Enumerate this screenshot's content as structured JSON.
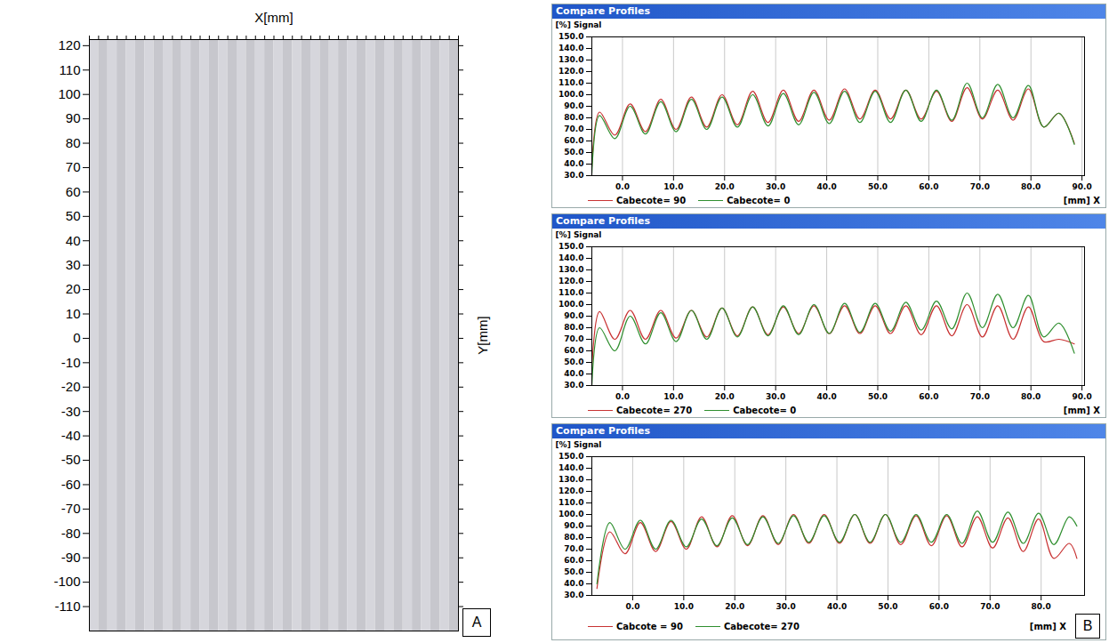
{
  "chart_data": [
    {
      "type": "heatmap",
      "panel_label": "A",
      "x_label": "X[mm]",
      "y_label": "Y[mm]",
      "tick_labels": "y",
      "cells": [
        84,
        78,
        84,
        78,
        84,
        78,
        84,
        78,
        84,
        78,
        84,
        78,
        84,
        78,
        84,
        78,
        84,
        78,
        84,
        78,
        84,
        78,
        84,
        78,
        84,
        78,
        84,
        78,
        84,
        78,
        84,
        78,
        84,
        78,
        84,
        78,
        84,
        78,
        84,
        78
      ],
      "ylim": [
        -120,
        122.5
      ],
      "yticks": [
        -110,
        -100,
        -90,
        -80,
        -70,
        -60,
        -50,
        -40,
        -30,
        -20,
        -10,
        0,
        10,
        20,
        30,
        40,
        50,
        60,
        70,
        80,
        90,
        100,
        110,
        120
      ]
    },
    {
      "type": "line",
      "title": "Compare Profiles",
      "y_label": "[%] Signal",
      "x_label": "[mm] X",
      "grid": true,
      "legend": "bottom",
      "xlim": [
        -6,
        90.5
      ],
      "xticks": [
        {
          "value": 0,
          "label": "0.0"
        },
        {
          "value": 10,
          "label": "10.0"
        },
        {
          "value": 20,
          "label": "20.0"
        },
        {
          "value": 30,
          "label": "30.0"
        },
        {
          "value": 40,
          "label": "40.0"
        },
        {
          "value": 50,
          "label": "50.0"
        },
        {
          "value": 60,
          "label": "60.0"
        },
        {
          "value": 70,
          "label": "70.0"
        },
        {
          "value": 80,
          "label": "80.0"
        },
        {
          "value": 90,
          "label": "90.0"
        }
      ],
      "ylim": [
        30,
        150
      ],
      "yticks": [
        {
          "value": 30,
          "label": "30.0"
        },
        {
          "value": 40,
          "label": "40.0"
        },
        {
          "value": 50,
          "label": "50.0"
        },
        {
          "value": 60,
          "label": "60.0"
        },
        {
          "value": 70,
          "label": "70.0"
        },
        {
          "value": 80,
          "label": "80.0"
        },
        {
          "value": 90,
          "label": "90.0"
        },
        {
          "value": 100,
          "label": "100.0"
        },
        {
          "value": 110,
          "label": "110.0"
        },
        {
          "value": 120,
          "label": "120.0"
        },
        {
          "value": 130,
          "label": "130.0"
        },
        {
          "value": 140,
          "label": "140.0"
        },
        {
          "value": 150,
          "label": "150.0"
        }
      ],
      "x": [
        -6,
        -4.5,
        -1.5,
        1.5,
        4.5,
        7.5,
        10.5,
        13.5,
        16.5,
        19.5,
        22.5,
        25.5,
        28.5,
        31.5,
        34.5,
        37.5,
        40.5,
        43.5,
        46.5,
        49.5,
        52.5,
        55.5,
        58.5,
        61.5,
        64.5,
        67.5,
        70.5,
        73.5,
        76.5,
        79.5,
        82.5,
        85.5,
        88.5
      ],
      "series": [
        {
          "name": "Cabecote= 90",
          "color": "#c83232",
          "values": [
            38,
            85,
            65,
            92,
            68,
            96,
            70,
            98,
            72,
            100,
            74,
            103,
            76,
            104,
            77,
            104,
            78,
            105,
            79,
            104,
            79,
            104,
            79,
            103,
            77,
            106,
            79,
            104,
            78,
            105,
            72,
            84,
            58
          ]
        },
        {
          "name": "Cabecote= 0",
          "color": "#2f8f2f",
          "values": [
            32,
            82,
            62,
            90,
            66,
            94,
            68,
            96,
            70,
            98,
            72,
            100,
            73,
            101,
            74,
            102,
            75,
            103,
            76,
            103,
            76,
            104,
            77,
            104,
            78,
            110,
            80,
            109,
            80,
            108,
            72,
            84,
            57
          ]
        }
      ]
    },
    {
      "type": "line",
      "title": "Compare Profiles",
      "y_label": "[%] Signal",
      "x_label": "[mm] X",
      "grid": true,
      "legend": "bottom",
      "xlim": [
        -6,
        90.5
      ],
      "xticks": [
        {
          "value": 0,
          "label": "0.0"
        },
        {
          "value": 10,
          "label": "10.0"
        },
        {
          "value": 20,
          "label": "20.0"
        },
        {
          "value": 30,
          "label": "30.0"
        },
        {
          "value": 40,
          "label": "40.0"
        },
        {
          "value": 50,
          "label": "50.0"
        },
        {
          "value": 60,
          "label": "60.0"
        },
        {
          "value": 70,
          "label": "70.0"
        },
        {
          "value": 80,
          "label": "80.0"
        },
        {
          "value": 90,
          "label": "90.0"
        }
      ],
      "ylim": [
        30,
        150
      ],
      "yticks": [
        {
          "value": 30,
          "label": "30.0"
        },
        {
          "value": 40,
          "label": "40.0"
        },
        {
          "value": 50,
          "label": "50.0"
        },
        {
          "value": 60,
          "label": "60.0"
        },
        {
          "value": 70,
          "label": "70.0"
        },
        {
          "value": 80,
          "label": "80.0"
        },
        {
          "value": 90,
          "label": "90.0"
        },
        {
          "value": 100,
          "label": "100.0"
        },
        {
          "value": 110,
          "label": "110.0"
        },
        {
          "value": 120,
          "label": "120.0"
        },
        {
          "value": 130,
          "label": "130.0"
        },
        {
          "value": 140,
          "label": "140.0"
        },
        {
          "value": 150,
          "label": "150.0"
        }
      ],
      "x": [
        -6,
        -4.5,
        -1.5,
        1.5,
        4.5,
        7.5,
        10.5,
        13.5,
        16.5,
        19.5,
        22.5,
        25.5,
        28.5,
        31.5,
        34.5,
        37.5,
        40.5,
        43.5,
        46.5,
        49.5,
        52.5,
        55.5,
        58.5,
        61.5,
        64.5,
        67.5,
        70.5,
        73.5,
        76.5,
        79.5,
        82.5,
        85.5,
        88.5
      ],
      "series": [
        {
          "name": "Cabecote= 270",
          "color": "#c83232",
          "values": [
            45,
            94,
            70,
            95,
            70,
            95,
            71,
            95,
            72,
            97,
            73,
            98,
            74,
            98,
            75,
            99,
            75,
            99,
            75,
            99,
            75,
            99,
            74,
            99,
            73,
            100,
            72,
            99,
            70,
            98,
            68,
            70,
            66
          ]
        },
        {
          "name": "Cabecote= 0",
          "color": "#2f8f2f",
          "values": [
            30,
            80,
            60,
            90,
            66,
            93,
            68,
            95,
            70,
            97,
            72,
            98,
            73,
            99,
            74,
            100,
            75,
            101,
            76,
            101,
            77,
            102,
            78,
            103,
            79,
            110,
            80,
            109,
            80,
            108,
            72,
            84,
            58
          ]
        }
      ]
    },
    {
      "type": "line",
      "title": "Compare Profiles",
      "y_label": "[%] Signal",
      "x_label": "[mm] X",
      "grid": true,
      "legend": "bottom",
      "panel_label": "B",
      "xlim": [
        -8,
        88.5
      ],
      "xticks": [
        {
          "value": 0,
          "label": "0.0"
        },
        {
          "value": 10,
          "label": "10.0"
        },
        {
          "value": 20,
          "label": "20.0"
        },
        {
          "value": 30,
          "label": "30.0"
        },
        {
          "value": 40,
          "label": "40.0"
        },
        {
          "value": 50,
          "label": "50.0"
        },
        {
          "value": 60,
          "label": "60.0"
        },
        {
          "value": 70,
          "label": "70.0"
        },
        {
          "value": 80,
          "label": "80.0"
        }
      ],
      "ylim": [
        30,
        150
      ],
      "yticks": [
        {
          "value": 30,
          "label": "30.0"
        },
        {
          "value": 40,
          "label": "40.0"
        },
        {
          "value": 50,
          "label": "50.0"
        },
        {
          "value": 60,
          "label": "60.0"
        },
        {
          "value": 70,
          "label": "70.0"
        },
        {
          "value": 80,
          "label": "80.0"
        },
        {
          "value": 90,
          "label": "90.0"
        },
        {
          "value": 100,
          "label": "100.0"
        },
        {
          "value": 110,
          "label": "110.0"
        },
        {
          "value": 120,
          "label": "120.0"
        },
        {
          "value": 130,
          "label": "130.0"
        },
        {
          "value": 140,
          "label": "140.0"
        },
        {
          "value": 150,
          "label": "150.0"
        }
      ],
      "x": [
        -7,
        -4.5,
        -1.5,
        1.5,
        4.5,
        7.5,
        10.5,
        13.5,
        16.5,
        19.5,
        22.5,
        25.5,
        28.5,
        31.5,
        34.5,
        37.5,
        40.5,
        43.5,
        46.5,
        49.5,
        52.5,
        55.5,
        58.5,
        61.5,
        64.5,
        67.5,
        70.5,
        73.5,
        76.5,
        79.5,
        82.5,
        85.5,
        87
      ],
      "series": [
        {
          "name": "Cabcote = 90",
          "color": "#c83232",
          "values": [
            36,
            85,
            66,
            93,
            68,
            94,
            70,
            98,
            72,
            99,
            73,
            99,
            74,
            100,
            75,
            100,
            75,
            100,
            75,
            100,
            74,
            99,
            73,
            99,
            72,
            98,
            71,
            97,
            68,
            96,
            62,
            75,
            62
          ]
        },
        {
          "name": "Cabecote= 270",
          "color": "#2f8f2f",
          "values": [
            40,
            93,
            70,
            95,
            70,
            95,
            72,
            96,
            73,
            97,
            74,
            98,
            75,
            99,
            76,
            99,
            76,
            100,
            76,
            100,
            76,
            100,
            76,
            100,
            75,
            103,
            76,
            102,
            75,
            101,
            74,
            98,
            90
          ]
        }
      ]
    }
  ]
}
